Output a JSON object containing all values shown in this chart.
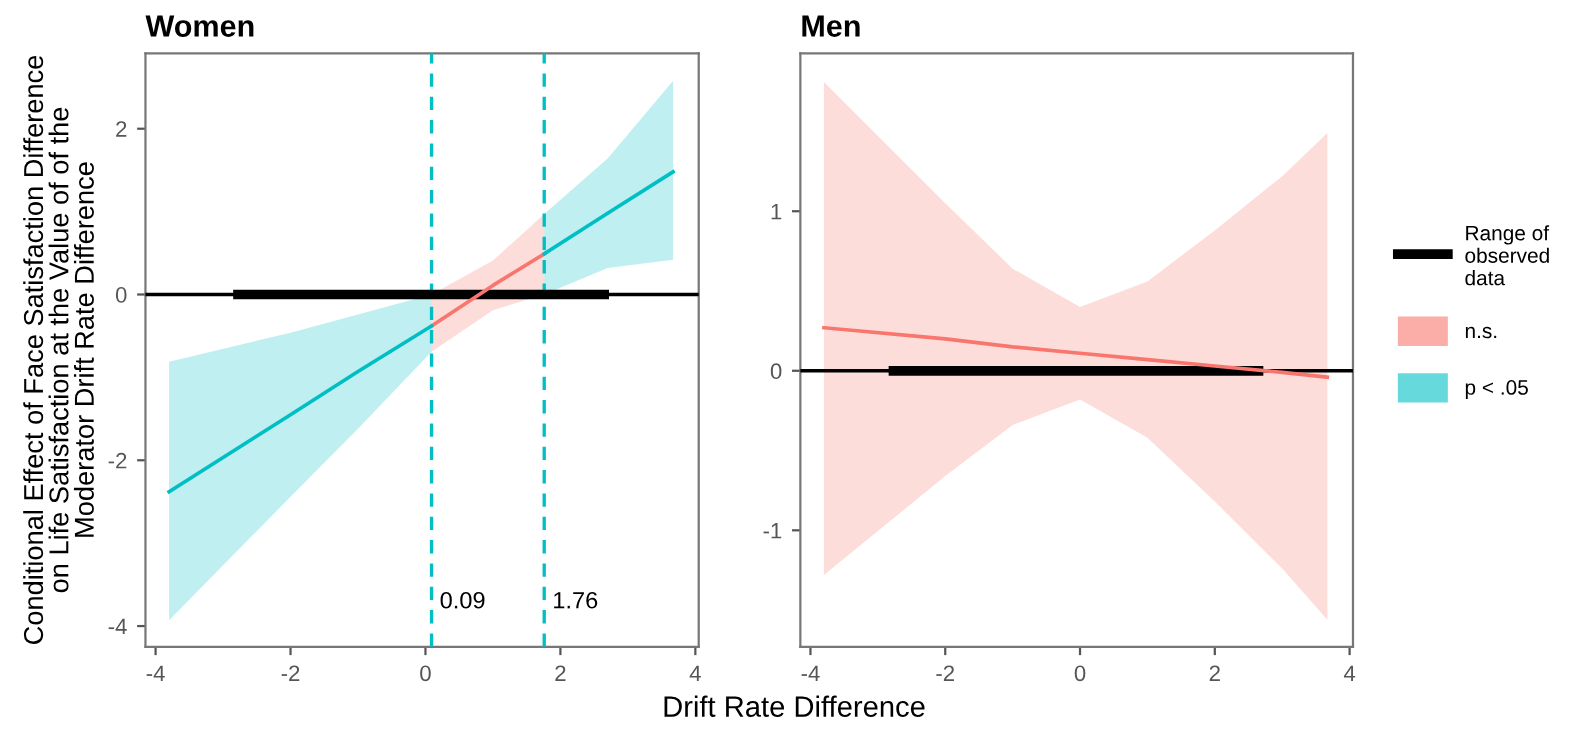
{
  "chart_data": [
    {
      "type": "line",
      "title": "Women",
      "xlabel": "Drift Rate Difference",
      "ylabel": "Conditional Effect of Face Satisfaction Difference\non Life Satisfaction at the Value of of the\nModerator Drift Rate Difference",
      "xlim": [
        -4.15,
        4.05
      ],
      "ylim": [
        -4.25,
        2.91
      ],
      "xticks": [
        -4,
        -2,
        0,
        2,
        4
      ],
      "yticks": [
        -4,
        -2,
        0,
        2
      ],
      "grid": false,
      "legend": "right",
      "ref_lines": [
        {
          "axis": "y",
          "value": 0,
          "color": "#000000",
          "line_style": "solid"
        },
        {
          "axis": "x",
          "value": 0.09,
          "label": "0.09",
          "color": "#00bfc4",
          "line_style": "dashed"
        },
        {
          "axis": "x",
          "value": 1.76,
          "label": "1.76",
          "color": "#00bfc4",
          "line_style": "dashed"
        }
      ],
      "series": [
        {
          "name": "Range of observed data",
          "color": "#000000",
          "x": [
            -2.85,
            2.72
          ],
          "values": [
            0,
            0
          ]
        },
        {
          "name": "n.s.",
          "color": "#f8766d",
          "x": [
            0.09,
            1.0,
            1.76
          ],
          "values": [
            -0.38,
            0.11,
            0.49
          ],
          "lower": [
            -0.69,
            -0.19,
            0.0
          ],
          "upper": [
            0.0,
            0.41,
            0.97
          ]
        },
        {
          "name": "p < .05",
          "color": "#00bfc4",
          "x": [
            -3.8,
            -2,
            -1,
            0.09,
            1.0,
            1.76,
            2.7,
            3.67
          ],
          "values": [
            -2.38,
            -1.45,
            -0.93,
            -0.38,
            null,
            0.49,
            0.98,
            1.48
          ],
          "lower": [
            -3.93,
            -2.44,
            -1.62,
            -0.69,
            null,
            0.0,
            0.32,
            0.42
          ],
          "upper": [
            -0.81,
            -0.46,
            -0.24,
            0.0,
            null,
            0.97,
            1.64,
            2.58
          ]
        }
      ]
    },
    {
      "type": "line",
      "title": "Men",
      "xlim": [
        -4.15,
        4.05
      ],
      "ylim": [
        -1.73,
        1.99
      ],
      "xticks": [
        -4,
        -2,
        0,
        2,
        4
      ],
      "yticks": [
        -1,
        0,
        1
      ],
      "grid": false,
      "legend": false,
      "ref_lines": [
        {
          "axis": "y",
          "value": 0,
          "color": "#000000",
          "line_style": "solid"
        }
      ],
      "series": [
        {
          "color": "#000000",
          "x": [
            -2.84,
            2.72
          ],
          "values": [
            0,
            0
          ]
        },
        {
          "color": "#f8766d",
          "x": [
            -3.8,
            -2,
            -1,
            0,
            1,
            2,
            3,
            3.67
          ],
          "values": [
            0.27,
            0.2,
            0.15,
            0.11,
            0.07,
            0.03,
            -0.01,
            -0.04
          ],
          "lower": [
            -1.28,
            -0.66,
            -0.34,
            -0.18,
            -0.42,
            -0.82,
            -1.24,
            -1.56
          ],
          "upper": [
            1.81,
            1.05,
            0.64,
            0.4,
            0.56,
            0.88,
            1.22,
            1.49
          ]
        }
      ]
    }
  ]
}
